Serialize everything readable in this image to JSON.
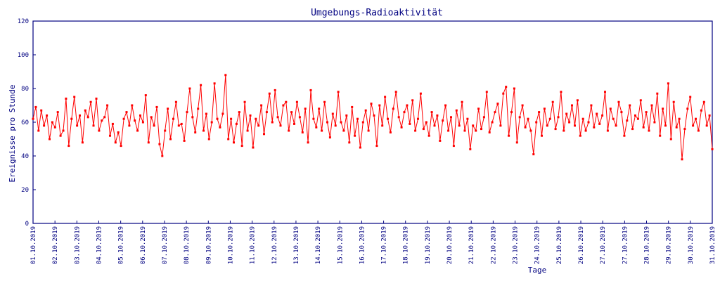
{
  "chart_data": {
    "type": "line",
    "title": "Umgebungs-Radioaktivität",
    "xlabel": "Tage",
    "ylabel": "Ereignisse pro Stunde",
    "ylim": [
      0,
      120
    ],
    "yticks": [
      0,
      20,
      40,
      60,
      80,
      100,
      120
    ],
    "xlim": [
      0,
      31
    ],
    "xtick_labels": [
      "01.10.2019",
      "02.10.2019",
      "03.10.2019",
      "04.10.2019",
      "05.10.2019",
      "06.10.2019",
      "07.10.2019",
      "08.10.2019",
      "09.10.2019",
      "10.10.2019",
      "11.10.2019",
      "12.10.2019",
      "13.10.2019",
      "14.10.2019",
      "15.10.2019",
      "16.10.2019",
      "17.10.2019",
      "18.10.2019",
      "19.10.2019",
      "20.10.2019",
      "21.10.2019",
      "22.10.2019",
      "23.10.2019",
      "24.10.2019",
      "25.10.2019",
      "26.10.2019",
      "27.10.2019",
      "27.10.2019",
      "28.10.2019",
      "29.10.2019",
      "30.10.2019",
      "31.10.2019"
    ],
    "grid": false,
    "colors": {
      "axis": "#000080",
      "series": "#ff0000"
    },
    "series": [
      {
        "name": "Ereignisse pro Stunde",
        "values": [
          62,
          69,
          55,
          67,
          58,
          64,
          50,
          60,
          57,
          66,
          52,
          55,
          74,
          46,
          62,
          75,
          58,
          64,
          48,
          67,
          63,
          72,
          58,
          74,
          55,
          61,
          63,
          70,
          52,
          59,
          48,
          54,
          46,
          62,
          66,
          58,
          70,
          61,
          55,
          64,
          60,
          76,
          48,
          63,
          58,
          69,
          47,
          40,
          55,
          68,
          50,
          62,
          72,
          58,
          59,
          49,
          66,
          80,
          63,
          54,
          68,
          82,
          55,
          65,
          50,
          60,
          83,
          62,
          57,
          65,
          88,
          50,
          62,
          48,
          59,
          66,
          46,
          72,
          55,
          64,
          45,
          62,
          58,
          70,
          53,
          66,
          77,
          60,
          79,
          63,
          58,
          70,
          72,
          55,
          66,
          59,
          72,
          63,
          54,
          68,
          48,
          79,
          62,
          57,
          68,
          55,
          72,
          60,
          51,
          65,
          58,
          78,
          60,
          55,
          64,
          48,
          69,
          52,
          62,
          45,
          60,
          67,
          55,
          71,
          64,
          46,
          70,
          58,
          75,
          62,
          54,
          68,
          78,
          63,
          57,
          66,
          70,
          59,
          73,
          55,
          62,
          77,
          56,
          60,
          52,
          66,
          58,
          64,
          49,
          61,
          70,
          55,
          63,
          46,
          67,
          58,
          72,
          55,
          62,
          44,
          58,
          55,
          68,
          56,
          63,
          78,
          54,
          60,
          66,
          71,
          58,
          77,
          81,
          52,
          66,
          80,
          48,
          63,
          70,
          57,
          62,
          55,
          41,
          60,
          66,
          52,
          68,
          58,
          62,
          72,
          56,
          63,
          78,
          55,
          65,
          60,
          70,
          58,
          73,
          52,
          62,
          55,
          60,
          70,
          57,
          65,
          59,
          64,
          78,
          55,
          68,
          62,
          58,
          72,
          66,
          52,
          61,
          70,
          56,
          64,
          62,
          73,
          57,
          66,
          55,
          70,
          60,
          77,
          52,
          68,
          58,
          83,
          50,
          72,
          57,
          62,
          38,
          56,
          68,
          75,
          58,
          62,
          55,
          67,
          72,
          58,
          64,
          44
        ]
      }
    ]
  }
}
